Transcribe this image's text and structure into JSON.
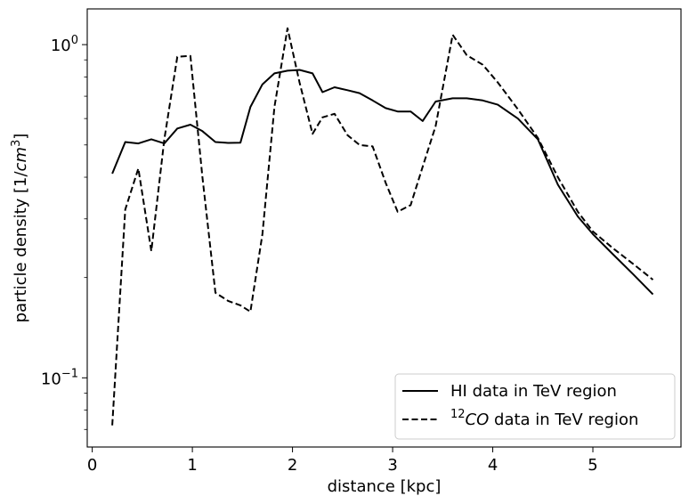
{
  "chart_data": {
    "type": "line",
    "xlabel": "distance [kpc]",
    "ylabel_main": "particle density [1/",
    "ylabel_unit_base": "cm",
    "ylabel_unit_exp": "3",
    "ylabel_close": "]",
    "xlim": [
      -0.05,
      5.88
    ],
    "ylim_log": [
      0.062,
      1.28
    ],
    "yscale": "log",
    "x_ticks": [
      {
        "value": 0,
        "label": "0"
      },
      {
        "value": 1,
        "label": "1"
      },
      {
        "value": 2,
        "label": "2"
      },
      {
        "value": 3,
        "label": "3"
      },
      {
        "value": 4,
        "label": "4"
      },
      {
        "value": 5,
        "label": "5"
      }
    ],
    "y_major_ticks": [
      {
        "value": 0.1,
        "base": "10",
        "exp": "−1"
      },
      {
        "value": 1.0,
        "base": "10",
        "exp": "0"
      }
    ],
    "y_minor_ticks": [
      0.07,
      0.08,
      0.09,
      0.2,
      0.3,
      0.4,
      0.5,
      0.6,
      0.7,
      0.8,
      0.9
    ],
    "legend": {
      "position": "lower right",
      "items": [
        {
          "series": 0,
          "text": "HI data in TeV region"
        },
        {
          "series": 1,
          "sup": "12",
          "italic": "CO",
          "text": " data in TeV region"
        }
      ]
    },
    "series": [
      {
        "style": "solid",
        "color": "#000000",
        "x": [
          0.2,
          0.33,
          0.46,
          0.59,
          0.72,
          0.85,
          0.98,
          1.1,
          1.23,
          1.36,
          1.48,
          1.58,
          1.7,
          1.82,
          1.95,
          2.07,
          2.2,
          2.3,
          2.42,
          2.55,
          2.67,
          2.8,
          2.93,
          3.05,
          3.18,
          3.3,
          3.43,
          3.6,
          3.74,
          3.9,
          4.05,
          4.25,
          4.45,
          4.65,
          4.85,
          5.0,
          5.2,
          5.4,
          5.6
        ],
        "y": [
          0.41,
          0.51,
          0.505,
          0.52,
          0.505,
          0.56,
          0.575,
          0.55,
          0.51,
          0.507,
          0.508,
          0.65,
          0.76,
          0.82,
          0.835,
          0.84,
          0.82,
          0.72,
          0.745,
          0.73,
          0.715,
          0.68,
          0.645,
          0.63,
          0.63,
          0.59,
          0.675,
          0.69,
          0.69,
          0.68,
          0.66,
          0.6,
          0.52,
          0.38,
          0.305,
          0.27,
          0.235,
          0.205,
          0.178
        ]
      },
      {
        "style": "dashed",
        "color": "#000000",
        "x": [
          0.2,
          0.33,
          0.46,
          0.59,
          0.72,
          0.85,
          0.98,
          1.1,
          1.23,
          1.36,
          1.48,
          1.58,
          1.7,
          1.82,
          1.95,
          2.07,
          2.2,
          2.3,
          2.42,
          2.55,
          2.67,
          2.8,
          2.93,
          3.05,
          3.18,
          3.3,
          3.43,
          3.6,
          3.74,
          3.9,
          4.05,
          4.25,
          4.45,
          4.65,
          4.85,
          5.0,
          5.2,
          5.4,
          5.6
        ],
        "y": [
          0.072,
          0.32,
          0.425,
          0.24,
          0.52,
          0.92,
          0.925,
          0.4,
          0.18,
          0.17,
          0.165,
          0.158,
          0.27,
          0.65,
          1.12,
          0.77,
          0.54,
          0.605,
          0.62,
          0.535,
          0.5,
          0.495,
          0.385,
          0.315,
          0.33,
          0.43,
          0.57,
          1.07,
          0.93,
          0.87,
          0.77,
          0.64,
          0.525,
          0.4,
          0.315,
          0.275,
          0.245,
          0.22,
          0.197
        ]
      }
    ]
  }
}
